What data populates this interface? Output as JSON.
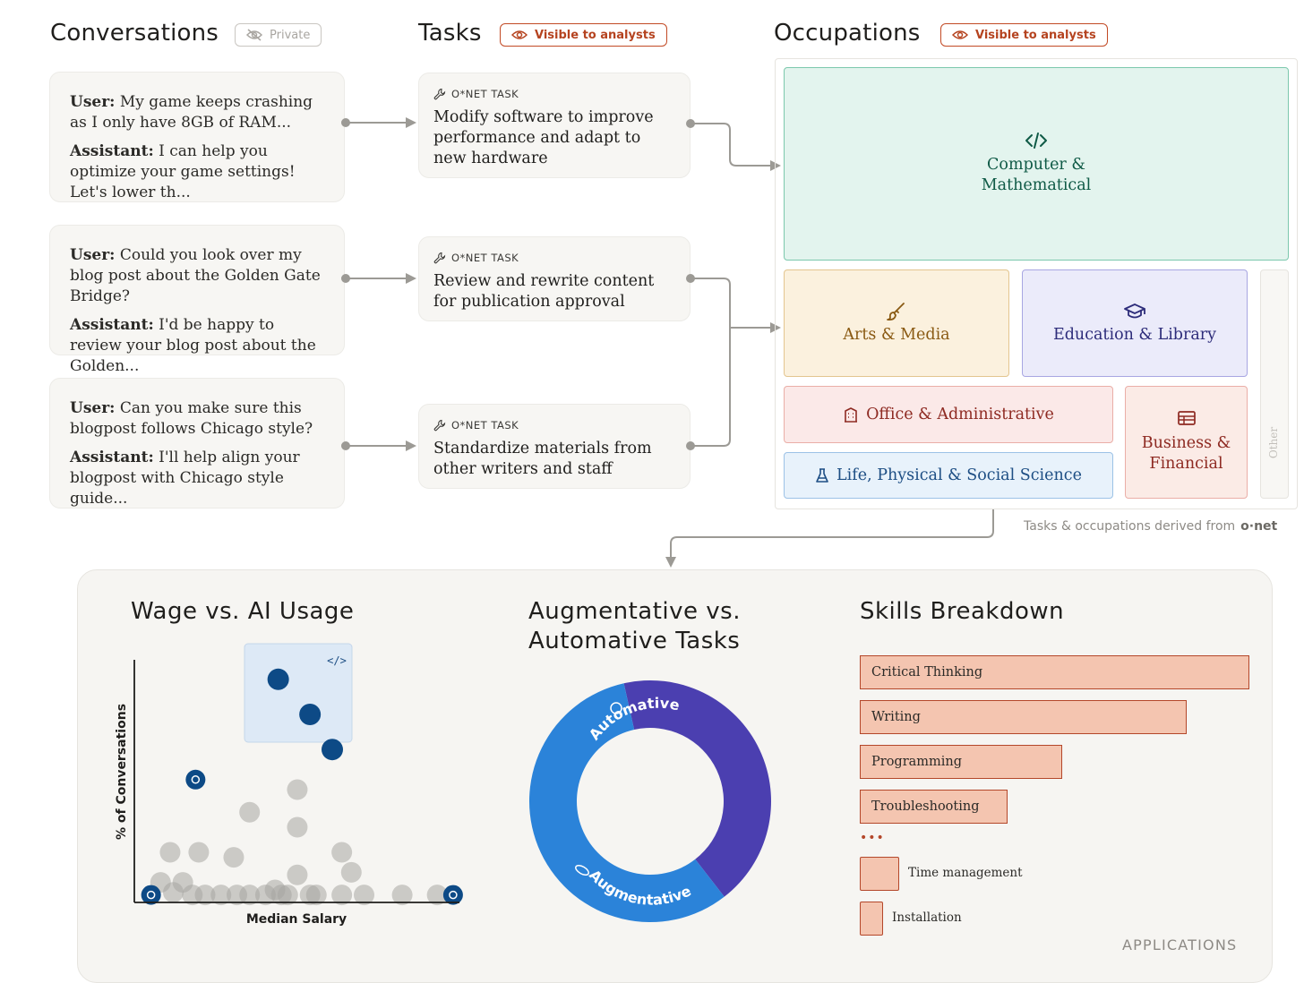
{
  "header": {
    "conversations": "Conversations",
    "private_badge": "Private",
    "tasks": "Tasks",
    "tasks_badge": "Visible to analysts",
    "occupations": "Occupations",
    "occupations_badge": "Visible to analysts"
  },
  "conversations": [
    {
      "user_label": "User:",
      "user_text": "My game keeps crashing as I only have 8GB of RAM...",
      "assistant_label": "Assistant:",
      "assistant_text": "I can help you optimize your game settings! Let's lower th..."
    },
    {
      "user_label": "User:",
      "user_text": "Could you look over my blog post about the Golden Gate Bridge?",
      "assistant_label": "Assistant:",
      "assistant_text": "I'd be happy to review your blog post about the Golden..."
    },
    {
      "user_label": "User:",
      "user_text": "Can you make sure this blogpost follows Chicago style?",
      "assistant_label": "Assistant:",
      "assistant_text": "I'll help align your blogpost with Chicago style guide..."
    }
  ],
  "tasks": [
    {
      "label": "O*NET TASK",
      "text": "Modify software to improve performance and adapt to new hardware"
    },
    {
      "label": "O*NET TASK",
      "text": "Review and rewrite content for publication approval"
    },
    {
      "label": "O*NET TASK",
      "text": "Standardize materials from other writers and staff"
    }
  ],
  "occupations": {
    "computer": "Computer & Mathematical",
    "arts": "Arts & Media",
    "education": "Education & Library",
    "office": "Office & Administrative",
    "business": "Business & Financial",
    "life": "Life, Physical & Social Science",
    "other": "Other"
  },
  "colors": {
    "accent": "#c24a25",
    "computer_bg": "#e3f4ee",
    "computer_text": "#0f5a46",
    "arts_bg": "#fbf1de",
    "arts_text": "#8a5a13",
    "education_bg": "#ebebfa",
    "education_text": "#2d2c7a",
    "office_bg": "#fbe9e8",
    "office_text": "#8e2a22",
    "business_bg": "#fbebe6",
    "business_text": "#8e2a22",
    "life_bg": "#e8f2fb",
    "life_text": "#1d4e84",
    "donut_automative": "#4b3fb0",
    "donut_augmentative": "#2b83d9",
    "skill_fill": "#f4c5b0",
    "skill_border": "#b4472a"
  },
  "footnote": {
    "text": "Tasks & occupations derived from",
    "logo": "o·net"
  },
  "charts": {
    "wage_title": "Wage vs. AI Usage",
    "aug_title_line1": "Augmentative vs.",
    "aug_title_line2": "Automative Tasks",
    "skills_title": "Skills Breakdown",
    "skills_more": "•••",
    "applications": "APPLICATIONS"
  },
  "chart_data": [
    {
      "type": "scatter",
      "title": "Wage vs. AI Usage",
      "xlabel": "Median Salary",
      "ylabel": "% of Conversations",
      "highlighted_points": [
        {
          "x": 0.43,
          "y": 0.89,
          "group": "Computer & Mathematical"
        },
        {
          "x": 0.53,
          "y": 0.75,
          "group": "Computer & Mathematical"
        },
        {
          "x": 0.6,
          "y": 0.61,
          "group": "Computer & Mathematical"
        }
      ],
      "icon_points": [
        {
          "x": 0.17,
          "y": 0.49,
          "icon": "graduation-cap-icon"
        },
        {
          "x": 0.03,
          "y": 0.03,
          "icon": "footprints-icon"
        },
        {
          "x": 0.98,
          "y": 0.03,
          "icon": "stethoscope-icon"
        }
      ],
      "grey_points": [
        [
          0.49,
          0.45
        ],
        [
          0.34,
          0.36
        ],
        [
          0.49,
          0.3
        ],
        [
          0.09,
          0.2
        ],
        [
          0.18,
          0.2
        ],
        [
          0.29,
          0.18
        ],
        [
          0.63,
          0.2
        ],
        [
          0.49,
          0.11
        ],
        [
          0.66,
          0.12
        ],
        [
          0.06,
          0.08
        ],
        [
          0.13,
          0.08
        ],
        [
          0.42,
          0.05
        ],
        [
          0.2,
          0.03
        ],
        [
          0.25,
          0.03
        ],
        [
          0.3,
          0.03
        ],
        [
          0.34,
          0.03
        ],
        [
          0.39,
          0.03
        ],
        [
          0.44,
          0.03
        ],
        [
          0.53,
          0.03
        ],
        [
          0.55,
          0.03
        ],
        [
          0.63,
          0.03
        ],
        [
          0.7,
          0.03
        ],
        [
          0.82,
          0.03
        ],
        [
          0.93,
          0.03
        ],
        [
          0.1,
          0.04
        ],
        [
          0.16,
          0.03
        ],
        [
          0.46,
          0.03
        ]
      ]
    },
    {
      "type": "pie",
      "title": "Augmentative vs. Automative Tasks",
      "series": [
        {
          "name": "Automative",
          "value": 43
        },
        {
          "name": "Augmentative",
          "value": 57
        }
      ]
    },
    {
      "type": "bar",
      "title": "Skills Breakdown",
      "categories": [
        "Critical Thinking",
        "Writing",
        "Programming",
        "Troubleshooting",
        "Time management",
        "Installation"
      ],
      "values": [
        100,
        84,
        52,
        38,
        10,
        6
      ]
    }
  ]
}
